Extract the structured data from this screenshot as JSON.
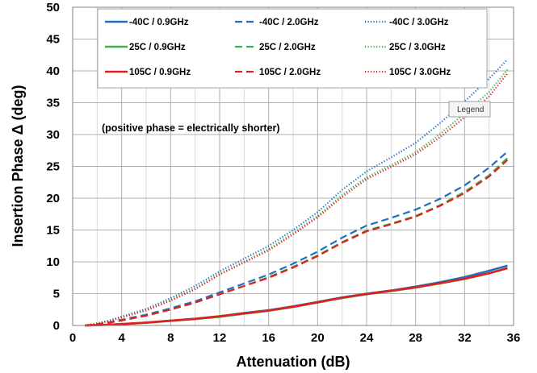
{
  "chart_data": {
    "type": "line",
    "xlabel": "Attenuation  (dB)",
    "ylabel": "Insertion Phase Δ  (deg)",
    "xlim": [
      0,
      36
    ],
    "ylim": [
      0,
      50
    ],
    "xticks": [
      0,
      4,
      8,
      12,
      16,
      20,
      24,
      28,
      32,
      36
    ],
    "yticks": [
      0,
      5,
      10,
      15,
      20,
      25,
      30,
      35,
      40,
      45,
      50
    ],
    "grid": true,
    "legend_position": "top",
    "annotation": "(positive phase = electrically shorter)",
    "tooltip": "Legend",
    "x": [
      1,
      2,
      3,
      4,
      6,
      8,
      10,
      12,
      14,
      16,
      18,
      20,
      22,
      24,
      26,
      28,
      30,
      32,
      34,
      35.5
    ],
    "series": [
      {
        "name": "-40C /  0.9GHz",
        "color": "#1f6fbf",
        "style": "solid",
        "values": [
          0,
          0.05,
          0.12,
          0.22,
          0.45,
          0.75,
          1.05,
          1.45,
          1.95,
          2.4,
          3.0,
          3.7,
          4.4,
          5.0,
          5.5,
          6.1,
          6.8,
          7.6,
          8.6,
          9.4
        ]
      },
      {
        "name": "-40C /  2.0GHz",
        "color": "#1f6fbf",
        "style": "dashed",
        "values": [
          0,
          0.2,
          0.5,
          0.9,
          1.7,
          2.7,
          3.8,
          5.2,
          6.6,
          8.0,
          9.7,
          11.6,
          13.8,
          15.7,
          16.9,
          18.2,
          19.9,
          22.0,
          24.8,
          27.3
        ]
      },
      {
        "name": "-40C /  3.0GHz",
        "color": "#1f6fbf",
        "style": "dotted",
        "values": [
          0,
          0.35,
          0.8,
          1.4,
          2.6,
          4.3,
          6.2,
          8.5,
          10.5,
          12.5,
          15.0,
          17.8,
          21.3,
          24.2,
          26.4,
          28.7,
          31.8,
          35.2,
          38.8,
          41.8
        ]
      },
      {
        "name": "25C /  0.9GHz",
        "color": "#3db24a",
        "style": "solid",
        "values": [
          0,
          0.05,
          0.11,
          0.2,
          0.42,
          0.72,
          1.0,
          1.35,
          1.85,
          2.3,
          2.9,
          3.6,
          4.3,
          4.9,
          5.4,
          5.95,
          6.6,
          7.3,
          8.2,
          9.0
        ]
      },
      {
        "name": "25C /  2.0GHz",
        "color": "#3db24a",
        "style": "dashed",
        "values": [
          0,
          0.18,
          0.45,
          0.8,
          1.55,
          2.5,
          3.6,
          4.9,
          6.2,
          7.6,
          9.2,
          11.0,
          13.1,
          14.9,
          16.0,
          17.2,
          18.9,
          21.0,
          23.6,
          26.3
        ]
      },
      {
        "name": "25C /  3.0GHz",
        "color": "#3db24a",
        "style": "dotted",
        "values": [
          0,
          0.3,
          0.72,
          1.3,
          2.4,
          4.0,
          5.8,
          8.1,
          10.0,
          12.0,
          14.5,
          17.2,
          20.5,
          23.3,
          25.2,
          27.2,
          30.1,
          33.3,
          36.7,
          40.2
        ]
      },
      {
        "name": "105C /  0.9GHz",
        "color": "#e02020",
        "style": "solid",
        "values": [
          0,
          0.05,
          0.12,
          0.22,
          0.45,
          0.75,
          1.05,
          1.45,
          1.9,
          2.35,
          2.95,
          3.65,
          4.35,
          4.95,
          5.45,
          6.0,
          6.65,
          7.35,
          8.2,
          9.0
        ]
      },
      {
        "name": "105C /  2.0GHz",
        "color": "#e02020",
        "style": "dashed",
        "values": [
          0,
          0.18,
          0.45,
          0.8,
          1.55,
          2.5,
          3.6,
          4.9,
          6.2,
          7.5,
          9.1,
          10.9,
          13.0,
          14.8,
          15.9,
          17.1,
          18.8,
          20.8,
          23.4,
          26.0
        ]
      },
      {
        "name": "105C /  3.0GHz",
        "color": "#e02020",
        "style": "dotted",
        "values": [
          0,
          0.3,
          0.7,
          1.25,
          2.35,
          3.9,
          5.7,
          8.0,
          9.9,
          11.8,
          14.3,
          17.0,
          20.2,
          23.0,
          24.9,
          26.9,
          29.6,
          32.7,
          36.0,
          39.6
        ]
      }
    ]
  }
}
